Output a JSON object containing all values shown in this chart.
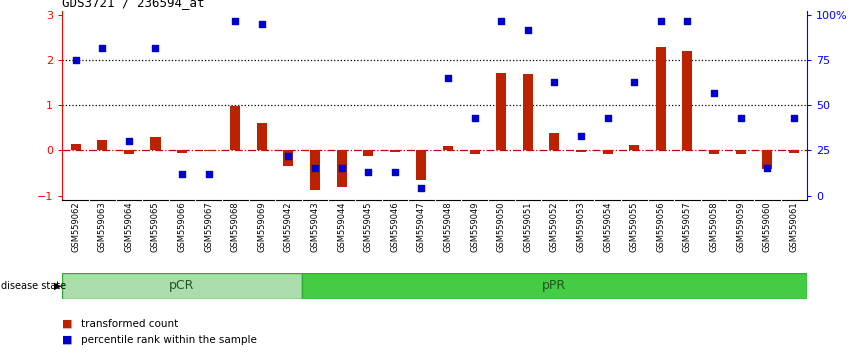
{
  "title": "GDS3721 / 236594_at",
  "samples": [
    "GSM559062",
    "GSM559063",
    "GSM559064",
    "GSM559065",
    "GSM559066",
    "GSM559067",
    "GSM559068",
    "GSM559069",
    "GSM559042",
    "GSM559043",
    "GSM559044",
    "GSM559045",
    "GSM559046",
    "GSM559047",
    "GSM559048",
    "GSM559049",
    "GSM559050",
    "GSM559051",
    "GSM559052",
    "GSM559053",
    "GSM559054",
    "GSM559055",
    "GSM559056",
    "GSM559057",
    "GSM559058",
    "GSM559059",
    "GSM559060",
    "GSM559061"
  ],
  "transformed_count": [
    0.15,
    0.22,
    -0.08,
    0.3,
    -0.05,
    -0.02,
    0.98,
    0.6,
    -0.35,
    -0.88,
    -0.82,
    -0.12,
    -0.03,
    -0.65,
    0.1,
    -0.07,
    1.72,
    1.7,
    0.38,
    -0.04,
    -0.07,
    0.13,
    2.3,
    2.2,
    -0.07,
    -0.08,
    -0.42,
    -0.05
  ],
  "percentile_rank": [
    75,
    82,
    30,
    82,
    12,
    12,
    97,
    95,
    22,
    15,
    15,
    13,
    13,
    4,
    65,
    43,
    97,
    92,
    63,
    33,
    43,
    63,
    97,
    97,
    57,
    43,
    15,
    43
  ],
  "pCR_count": 9,
  "ylim_left": [
    -1.1,
    3.1
  ],
  "yticks_left": [
    -1,
    0,
    1,
    2,
    3
  ],
  "ytick_right_pct": [
    0,
    25,
    50,
    75,
    100
  ],
  "dotted_line_values": [
    1.0,
    2.0
  ],
  "zero_line_color": "#cc0000",
  "bar_color": "#bb2200",
  "dot_color": "#0000cc",
  "pCR_color": "#aaddaa",
  "pPR_color": "#44cc44",
  "tick_bg_color": "#c8c8c8",
  "pCR_label": "pCR",
  "pPR_label": "pPR",
  "disease_state_label": "disease state",
  "legend_bar_label": "transformed count",
  "legend_dot_label": "percentile rank within the sample",
  "title_fontsize": 9,
  "tick_label_fontsize": 6,
  "legend_fontsize": 7.5
}
